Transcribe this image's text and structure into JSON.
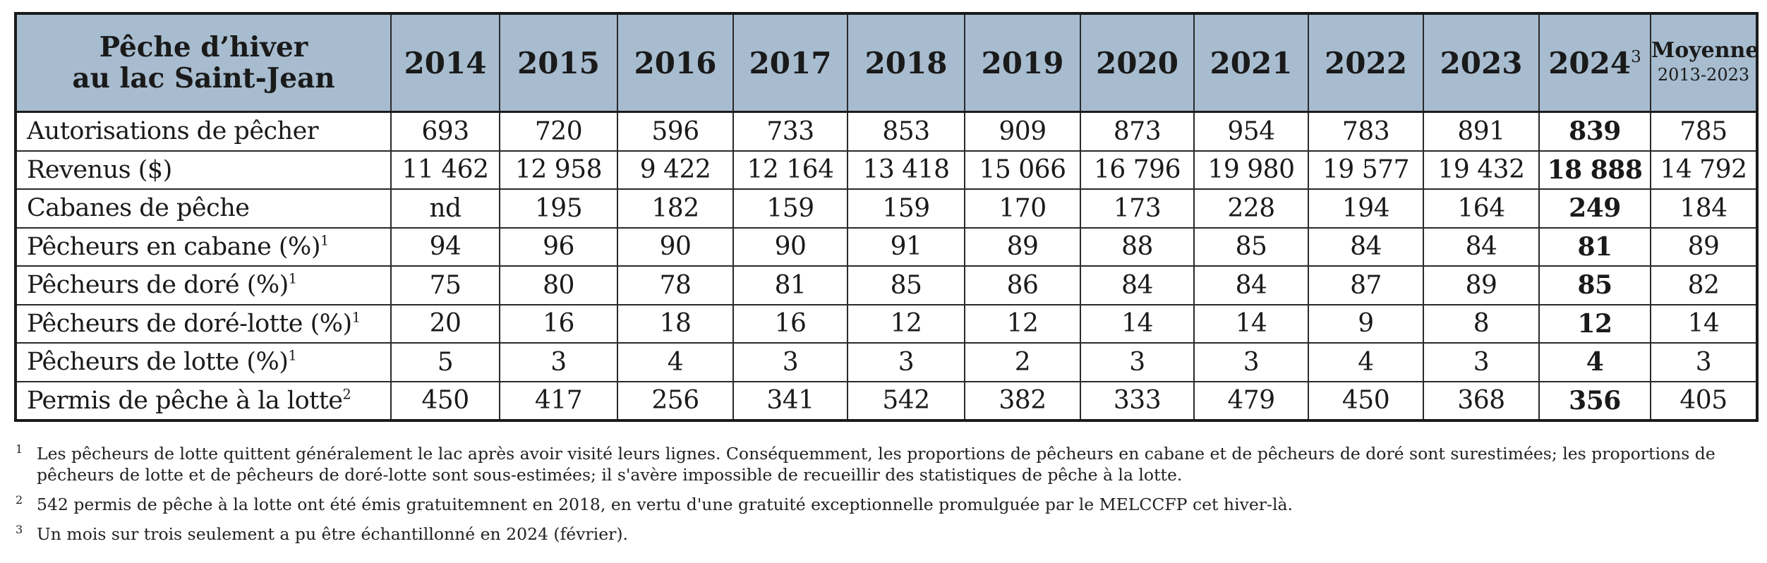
{
  "table": {
    "header": {
      "label_line1": "Pêche d’hiver",
      "label_line2": "au lac Saint-Jean",
      "years": [
        "2014",
        "2015",
        "2016",
        "2017",
        "2018",
        "2019",
        "2020",
        "2021",
        "2022",
        "2023",
        "2024"
      ],
      "year_2024_note": "3",
      "avg_label": "Moyenne",
      "avg_period": "2013-2023"
    },
    "rows": [
      {
        "label": "Autorisations de pêcher",
        "note": "",
        "values": [
          "693",
          "720",
          "596",
          "733",
          "853",
          "909",
          "873",
          "954",
          "783",
          "891",
          "839"
        ],
        "avg": "785"
      },
      {
        "label": "Revenus ($)",
        "note": "",
        "values": [
          "11 462",
          "12 958",
          "9 422",
          "12 164",
          "13 418",
          "15 066",
          "16 796",
          "19 980",
          "19 577",
          "19 432",
          "18 888"
        ],
        "avg": "14 792"
      },
      {
        "label": "Cabanes de pêche",
        "note": "",
        "values": [
          "nd",
          "195",
          "182",
          "159",
          "159",
          "170",
          "173",
          "228",
          "194",
          "164",
          "249"
        ],
        "avg": "184"
      },
      {
        "label": "Pêcheurs en cabane (%)",
        "note": "1",
        "values": [
          "94",
          "96",
          "90",
          "90",
          "91",
          "89",
          "88",
          "85",
          "84",
          "84",
          "81"
        ],
        "avg": "89"
      },
      {
        "label": "Pêcheurs de doré (%)",
        "note": "1",
        "values": [
          "75",
          "80",
          "78",
          "81",
          "85",
          "86",
          "84",
          "84",
          "87",
          "89",
          "85"
        ],
        "avg": "82"
      },
      {
        "label": "Pêcheurs de doré-lotte (%)",
        "note": "1",
        "values": [
          "20",
          "16",
          "18",
          "16",
          "12",
          "12",
          "14",
          "14",
          "9",
          "8",
          "12"
        ],
        "avg": "14"
      },
      {
        "label": "Pêcheurs de lotte (%)",
        "note": "1",
        "values": [
          "5",
          "3",
          "4",
          "3",
          "3",
          "2",
          "3",
          "3",
          "4",
          "3",
          "4"
        ],
        "avg": "3"
      },
      {
        "label": "Permis de pêche à la lotte",
        "note": "2",
        "values": [
          "450",
          "417",
          "256",
          "341",
          "542",
          "382",
          "333",
          "479",
          "450",
          "368",
          "356"
        ],
        "avg": "405"
      }
    ]
  },
  "footnotes": [
    {
      "num": "1",
      "text": "Les pêcheurs de lotte quittent généralement le lac après avoir visité leurs lignes. Conséquemment, les proportions de pêcheurs en cabane et de pêcheurs de doré sont surestimées; les proportions de pêcheurs de lotte et de pêcheurs de doré-lotte sont sous-estimées; il s'avère impossible de recueillir des statistiques de pêche à la lotte."
    },
    {
      "num": "2",
      "text": "542 permis de pêche à la lotte ont été émis gratuitemnent en 2018, en vertu d'une gratuité exceptionnelle promulguée par le MELCCFP cet hiver-là."
    },
    {
      "num": "3",
      "text": "Un mois sur trois seulement a pu être échantillonné en 2024 (février)."
    }
  ],
  "colors": {
    "header_bg": "#a7bccf",
    "border": "#1b1b1b"
  }
}
